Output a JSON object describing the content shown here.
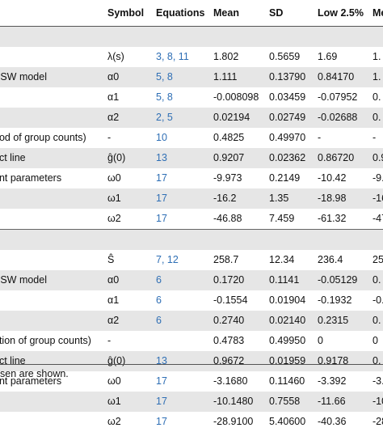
{
  "table": {
    "headers": [
      "",
      "Symbol",
      "Equations",
      "Mean",
      "SD",
      "Low 2.5%",
      "Me"
    ],
    "rows": [
      {
        "label": "",
        "symbol": "",
        "eq": "",
        "mean": "",
        "sd": "",
        "low": "",
        "med": "",
        "shade": true,
        "blank": true
      },
      {
        "label": "",
        "symbol": "λ(s)",
        "eq": "3, 8, 11",
        "mean": "1.802",
        "sd": "0.5659",
        "low": "1.69",
        "med": "1.",
        "shade": false
      },
      {
        "label": "ESW model",
        "symbol": "α0",
        "eq": "5, 8",
        "mean": "1.111",
        "sd": "0.13790",
        "low": "0.84170",
        "med": "1.",
        "shade": true
      },
      {
        "label": "",
        "symbol": "α1",
        "eq": "5, 8",
        "mean": "-0.008098",
        "sd": "0.03459",
        "low": "-0.07952",
        "med": "0.",
        "shade": false
      },
      {
        "label": "",
        "symbol": "α2",
        "eq": "2, 5",
        "mean": "0.02194",
        "sd": "0.02749",
        "low": "-0.02688",
        "med": "0.",
        "shade": true
      },
      {
        "label": "ood of group counts)",
        "symbol": "-",
        "eq": "10",
        "mean": "0.4825",
        "sd": "0.49970",
        "low": "-",
        "med": "-",
        "shade": false
      },
      {
        "label": "ect line",
        "symbol": "ĝ(0)",
        "eq": "13",
        "mean": "0.9207",
        "sd": "0.02362",
        "low": "0.86720",
        "med": "0.9",
        "shade": true
      },
      {
        "label": "ent parameters",
        "symbol": "ω0",
        "eq": "17",
        "mean": "-9.973",
        "sd": "0.2149",
        "low": "-10.42",
        "med": "-9.",
        "shade": false
      },
      {
        "label": "",
        "symbol": "ω1",
        "eq": "17",
        "mean": "-16.2",
        "sd": "1.35",
        "low": "-18.98",
        "med": "-16",
        "shade": true
      },
      {
        "label": "",
        "symbol": "ω2",
        "eq": "17",
        "mean": "-46.88",
        "sd": "7.459",
        "low": "-61.32",
        "med": "-47",
        "shade": false
      },
      {
        "label": "ı",
        "symbol": "",
        "eq": "",
        "mean": "",
        "sd": "",
        "low": "",
        "med": "",
        "shade": true,
        "bordered": true
      },
      {
        "label": "",
        "symbol": "Ŝ",
        "eq": "7, 12",
        "mean": "258.7",
        "sd": "12.34",
        "low": "236.4",
        "med": "25",
        "shade": false
      },
      {
        "label": "ESW model",
        "symbol": "α0",
        "eq": "6",
        "mean": "0.1720",
        "sd": "0.1141",
        "low": "-0.05129",
        "med": "0.",
        "shade": true
      },
      {
        "label": "",
        "symbol": "α1",
        "eq": "6",
        "mean": "-0.1554",
        "sd": "0.01904",
        "low": "-0.1932",
        "med": "-0.",
        "shade": false
      },
      {
        "label": "",
        "symbol": "α2",
        "eq": "6",
        "mean": "0.2740",
        "sd": "0.02140",
        "low": "0.2315",
        "med": "0.",
        "shade": true
      },
      {
        "label": "ution of group counts)",
        "symbol": "-",
        "eq": "",
        "mean": "0.4783",
        "sd": "0.49950",
        "low": "0",
        "med": "0",
        "shade": false
      },
      {
        "label": "ect line",
        "symbol": "ĝ(0)",
        "eq": "13",
        "mean": "0.9672",
        "sd": "0.01959",
        "low": "0.9178",
        "med": "0.",
        "shade": true
      },
      {
        "label": "ent parameters",
        "symbol": "ω0",
        "eq": "17",
        "mean": "-3.1680",
        "sd": "0.11460",
        "low": "-3.392",
        "med": "-3.",
        "shade": false
      },
      {
        "label": "",
        "symbol": "ω1",
        "eq": "17",
        "mean": "-10.1480",
        "sd": "0.7558",
        "low": "-11.66",
        "med": "-10",
        "shade": true
      },
      {
        "label": "",
        "symbol": "ω2",
        "eq": "17",
        "mean": "-28.9100",
        "sd": "5.40600",
        "low": "-40.36",
        "med": "-28",
        "shade": false
      }
    ],
    "footnote": "sen are shown."
  },
  "colors": {
    "link": "#2f6fb5",
    "shade": "#e6e6e6"
  }
}
